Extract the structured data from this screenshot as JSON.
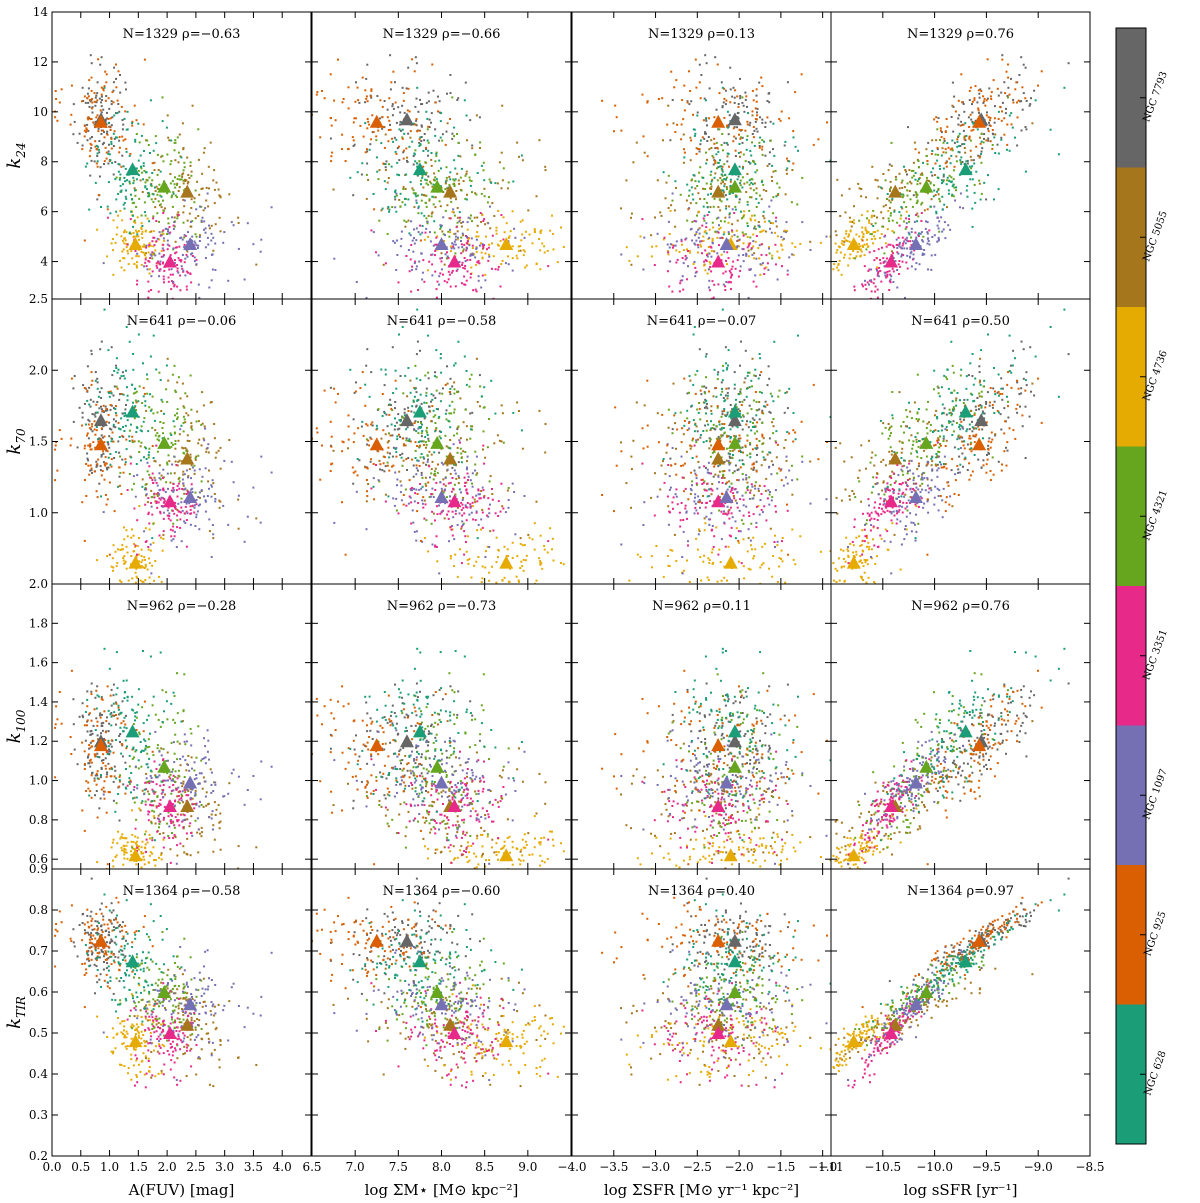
{
  "chart_data": {
    "type": "scatter",
    "title": "",
    "colorbar": {
      "labels": [
        "NGC 7793",
        "NGC 5055",
        "NGC 4736",
        "NGC 4321",
        "NGC 3351",
        "NGC 1097",
        "NGC 925",
        "NGC 628"
      ],
      "colors": [
        "#666666",
        "#a6761d",
        "#e6ab02",
        "#66a61e",
        "#e7298a",
        "#7570b3",
        "#d95f02",
        "#1b9e77"
      ]
    },
    "columns": [
      {
        "xlabel": "A(FUV) [mag]",
        "xlim": [
          0.0,
          4.5
        ],
        "ticks": [
          0.0,
          0.5,
          1.0,
          1.5,
          2.0,
          2.5,
          3.0,
          3.5,
          4.0
        ],
        "tick_labels": [
          "0.0",
          "0.5",
          "1.0",
          "1.5",
          "2.0",
          "2.5",
          "3.0",
          "3.5",
          "4.0"
        ]
      },
      {
        "xlabel": "log ΣM⋆ [M⊙ kpc⁻²]",
        "xlim": [
          6.5,
          9.5
        ],
        "ticks": [
          6.5,
          7.0,
          7.5,
          8.0,
          8.5,
          9.0
        ],
        "tick_labels": [
          "6.5",
          "7.0",
          "7.5",
          "8.0",
          "8.5",
          "9.0"
        ]
      },
      {
        "xlabel": "log ΣSFR [M⊙ yr⁻¹ kpc⁻²]",
        "xlim": [
          -4.0,
          -0.9
        ],
        "ticks": [
          -4.0,
          -3.5,
          -3.0,
          -2.5,
          -2.0,
          -1.5,
          -1.0
        ],
        "tick_labels": [
          "−4.0",
          "−3.5",
          "−3.0",
          "−2.5",
          "−2.0",
          "−1.5",
          "−1.0"
        ]
      },
      {
        "xlabel": "log sSFR [yr⁻¹]",
        "xlim": [
          -11.0,
          -8.5
        ],
        "ticks": [
          -11.0,
          -10.5,
          -10.0,
          -9.5,
          -9.0,
          -8.5
        ],
        "tick_labels": [
          "−11",
          "−10.5",
          "−10.0",
          "−9.5",
          "−9.0",
          "−8.5"
        ]
      }
    ],
    "rows": [
      {
        "ylabel": "k",
        "ysub": "24",
        "ylim": [
          2.5,
          14
        ],
        "ticks": [
          2.5,
          4,
          6,
          8,
          10,
          12,
          14
        ],
        "tick_labels": [
          "2.5",
          "4",
          "6",
          "8",
          "10",
          "12",
          "14"
        ],
        "annotations": [
          "N=1329 ρ=−0.63",
          "N=1329 ρ=−0.66",
          "N=1329 ρ=0.13",
          "N=1329 ρ=0.76"
        ]
      },
      {
        "ylabel": "k",
        "ysub": "70",
        "ylim": [
          0.5,
          2.5
        ],
        "ticks": [
          1.0,
          1.5,
          2.0
        ],
        "tick_labels": [
          "1.0",
          "1.5",
          "2.0"
        ],
        "annotations": [
          "N=641 ρ=−0.06",
          "N=641 ρ=−0.58",
          "N=641 ρ=−0.07",
          "N=641 ρ=0.50"
        ]
      },
      {
        "ylabel": "k",
        "ysub": "100",
        "ylim": [
          0.55,
          2.0
        ],
        "ticks": [
          0.6,
          0.8,
          1.0,
          1.2,
          1.4,
          1.6,
          1.8,
          2.0
        ],
        "tick_labels": [
          "0.6",
          "0.8",
          "1.0",
          "1.2",
          "1.4",
          "1.6",
          "1.8",
          "2.0"
        ],
        "annotations": [
          "N=962 ρ=−0.28",
          "N=962 ρ=−0.73",
          "N=962 ρ=0.11",
          "N=962 ρ=0.76"
        ]
      },
      {
        "ylabel": "k",
        "ysub": "TIR",
        "ylim": [
          0.2,
          0.9
        ],
        "ticks": [
          0.2,
          0.3,
          0.4,
          0.5,
          0.6,
          0.7,
          0.8,
          0.9
        ],
        "tick_labels": [
          "0.2",
          "0.3",
          "0.4",
          "0.5",
          "0.6",
          "0.7",
          "0.8",
          "0.9"
        ],
        "annotations": [
          "N=1364 ρ=−0.58",
          "N=1364 ρ=−0.60",
          "N=1364 ρ=0.40",
          "N=1364 ρ=0.97"
        ]
      }
    ],
    "galaxy_medians": {
      "order": [
        "NGC 7793",
        "NGC 5055",
        "NGC 4736",
        "NGC 4321",
        "NGC 3351",
        "NGC 1097",
        "NGC 925",
        "NGC 628"
      ],
      "afuv": [
        0.85,
        2.35,
        1.45,
        1.95,
        2.05,
        2.4,
        0.85,
        1.4
      ],
      "mstar": [
        7.6,
        8.1,
        8.75,
        7.95,
        8.15,
        8.0,
        7.25,
        7.75
      ],
      "sfr": [
        -2.05,
        -2.25,
        -2.1,
        -2.05,
        -2.25,
        -2.15,
        -2.25,
        -2.05
      ],
      "ssfr": [
        -9.55,
        -10.38,
        -10.78,
        -10.08,
        -10.42,
        -10.18,
        -9.57,
        -9.7
      ],
      "k24": [
        9.7,
        6.8,
        4.7,
        7.0,
        4.0,
        4.7,
        9.6,
        7.7
      ],
      "k70": [
        1.65,
        1.38,
        0.65,
        1.49,
        1.08,
        1.11,
        1.48,
        1.71
      ],
      "k100": [
        1.2,
        0.87,
        0.62,
        1.07,
        0.87,
        0.99,
        1.18,
        1.25
      ],
      "ktir": [
        0.725,
        0.52,
        0.48,
        0.6,
        0.5,
        0.57,
        0.725,
        0.675
      ]
    },
    "point_spread": {
      "afuv": [
        0.22,
        0.4,
        0.25,
        0.35,
        0.35,
        0.5,
        0.3,
        0.35
      ],
      "mstar": [
        0.35,
        0.45,
        0.4,
        0.35,
        0.3,
        0.45,
        0.4,
        0.4
      ],
      "sfr": [
        0.3,
        0.5,
        0.55,
        0.35,
        0.35,
        0.45,
        0.5,
        0.35
      ],
      "ssfr": [
        0.3,
        0.45,
        0.2,
        0.3,
        0.15,
        0.2,
        0.3,
        0.35
      ],
      "k24": [
        1.2,
        1.1,
        0.6,
        1.2,
        0.7,
        0.8,
        1.2,
        1.2
      ],
      "k70": [
        0.25,
        0.25,
        0.15,
        0.25,
        0.15,
        0.2,
        0.25,
        0.25
      ],
      "k100": [
        0.17,
        0.15,
        0.08,
        0.2,
        0.1,
        0.12,
        0.17,
        0.2
      ],
      "ktir": [
        0.05,
        0.06,
        0.05,
        0.06,
        0.05,
        0.06,
        0.05,
        0.06
      ],
      "points_per_galaxy": 110
    }
  }
}
